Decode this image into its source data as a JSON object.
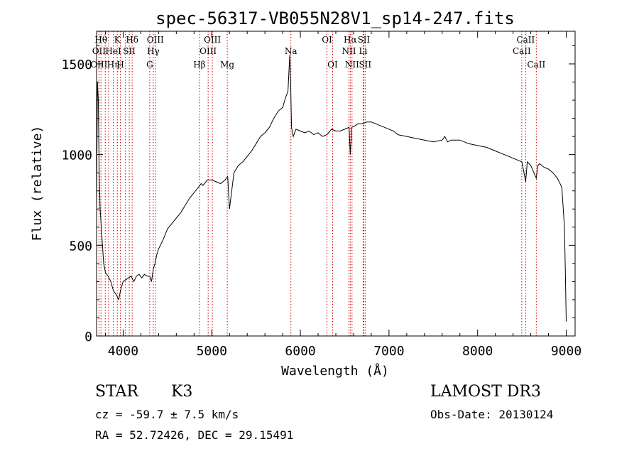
{
  "chart_data": {
    "type": "line",
    "title": "spec-56317-VB055N28V1_sp14-247.fits",
    "xlabel": "Wavelength (Å)",
    "ylabel": "Flux (relative)",
    "xlim": [
      3700,
      9100
    ],
    "ylim": [
      0,
      1680
    ],
    "xticks": [
      4000,
      5000,
      6000,
      7000,
      8000,
      9000
    ],
    "yticks": [
      0,
      500,
      1000,
      1500
    ],
    "grid": false,
    "line_color": "#000000",
    "marker_color": "#cc0000",
    "series": [
      {
        "x": [
          3700,
          3710,
          3720,
          3730,
          3740,
          3760,
          3780,
          3800,
          3830,
          3860,
          3890,
          3920,
          3950,
          3970,
          4000,
          4030,
          4060,
          4090,
          4120,
          4150,
          4180,
          4210,
          4240,
          4270,
          4300,
          4320,
          4340,
          4360,
          4380,
          4400,
          4450,
          4500,
          4550,
          4600,
          4650,
          4700,
          4750,
          4800,
          4850,
          4880,
          4900,
          4950,
          5000,
          5050,
          5100,
          5150,
          5180,
          5200,
          5250,
          5300,
          5350,
          5400,
          5450,
          5500,
          5550,
          5600,
          5650,
          5700,
          5750,
          5800,
          5830,
          5860,
          5880,
          5890,
          5900,
          5920,
          5950,
          6000,
          6050,
          6100,
          6150,
          6200,
          6250,
          6300,
          6350,
          6400,
          6450,
          6500,
          6550,
          6563,
          6580,
          6620,
          6650,
          6700,
          6750,
          6800,
          6850,
          6900,
          6950,
          7000,
          7050,
          7100,
          7200,
          7300,
          7400,
          7500,
          7600,
          7630,
          7660,
          7700,
          7800,
          7900,
          8000,
          8100,
          8200,
          8300,
          8400,
          8450,
          8500,
          8542,
          8560,
          8600,
          8662,
          8680,
          8700,
          8750,
          8800,
          8850,
          8900,
          8950,
          8980,
          8990,
          9000
        ],
        "y": [
          700,
          1400,
          1300,
          900,
          700,
          550,
          400,
          350,
          330,
          300,
          250,
          230,
          200,
          250,
          300,
          310,
          320,
          330,
          300,
          330,
          340,
          320,
          340,
          330,
          330,
          300,
          370,
          400,
          450,
          480,
          530,
          590,
          620,
          650,
          680,
          720,
          760,
          790,
          820,
          840,
          830,
          860,
          860,
          850,
          840,
          860,
          880,
          700,
          900,
          940,
          960,
          990,
          1020,
          1060,
          1100,
          1120,
          1150,
          1200,
          1240,
          1260,
          1310,
          1350,
          1550,
          1400,
          1150,
          1100,
          1140,
          1130,
          1120,
          1130,
          1110,
          1120,
          1100,
          1110,
          1140,
          1130,
          1130,
          1140,
          1150,
          1000,
          1150,
          1160,
          1170,
          1170,
          1180,
          1180,
          1170,
          1160,
          1150,
          1140,
          1130,
          1110,
          1100,
          1090,
          1080,
          1070,
          1080,
          1100,
          1070,
          1080,
          1080,
          1060,
          1050,
          1040,
          1020,
          1000,
          980,
          970,
          960,
          850,
          960,
          940,
          870,
          940,
          950,
          930,
          920,
          900,
          870,
          820,
          600,
          350,
          80
        ]
      }
    ],
    "lines": [
      {
        "wl": 3727,
        "labels": [
          "",
          "OII",
          "OIII"
        ]
      },
      {
        "wl": 3750,
        "labels": [
          "Hθ",
          "",
          ""
        ]
      },
      {
        "wl": 3798,
        "labels": [
          "",
          "",
          ""
        ]
      },
      {
        "wl": 3835,
        "labels": [
          "",
          "",
          ""
        ]
      },
      {
        "wl": 3889,
        "labels": [
          "",
          "HeI",
          "Hη"
        ]
      },
      {
        "wl": 3934,
        "labels": [
          "K",
          "",
          ""
        ]
      },
      {
        "wl": 3969,
        "labels": [
          "",
          "",
          "H"
        ]
      },
      {
        "wl": 4026,
        "labels": [
          "",
          "",
          ""
        ]
      },
      {
        "wl": 4069,
        "labels": [
          "",
          "SII",
          ""
        ]
      },
      {
        "wl": 4102,
        "labels": [
          "Hδ",
          "",
          ""
        ]
      },
      {
        "wl": 4300,
        "labels": [
          "",
          "",
          "G"
        ]
      },
      {
        "wl": 4340,
        "labels": [
          "",
          "Hγ",
          ""
        ]
      },
      {
        "wl": 4363,
        "labels": [
          "OIII",
          "",
          ""
        ]
      },
      {
        "wl": 4861,
        "labels": [
          "",
          "",
          "Hβ"
        ]
      },
      {
        "wl": 4959,
        "labels": [
          "",
          "OIII",
          ""
        ]
      },
      {
        "wl": 5007,
        "labels": [
          "OIII",
          "",
          ""
        ]
      },
      {
        "wl": 5175,
        "labels": [
          "",
          "",
          "Mg"
        ]
      },
      {
        "wl": 5893,
        "labels": [
          "",
          "Na",
          ""
        ]
      },
      {
        "wl": 6300,
        "labels": [
          "OI",
          "",
          ""
        ]
      },
      {
        "wl": 6364,
        "labels": [
          "",
          "",
          "OI"
        ]
      },
      {
        "wl": 6548,
        "labels": [
          "",
          "NII",
          ""
        ]
      },
      {
        "wl": 6563,
        "labels": [
          "Hα",
          "",
          ""
        ]
      },
      {
        "wl": 6583,
        "labels": [
          "",
          "",
          "NII"
        ]
      },
      {
        "wl": 6708,
        "labels": [
          "",
          "Li",
          ""
        ]
      },
      {
        "wl": 6716,
        "labels": [
          "SII",
          "",
          ""
        ]
      },
      {
        "wl": 6731,
        "labels": [
          "",
          "",
          "SII"
        ]
      },
      {
        "wl": 8498,
        "labels": [
          "",
          "CaII",
          ""
        ]
      },
      {
        "wl": 8542,
        "labels": [
          "CaII",
          "",
          ""
        ]
      },
      {
        "wl": 8662,
        "labels": [
          "",
          "",
          "CaII"
        ]
      }
    ]
  },
  "info": {
    "class_label": "STAR",
    "subclass_label": "K3",
    "survey_label": "LAMOST DR3",
    "cz_text": "cz = -59.7 ± 7.5 km/s",
    "obs_date_text": "Obs-Date: 20130124",
    "radec_text": "RA =  52.72426, DEC =  29.15491"
  }
}
